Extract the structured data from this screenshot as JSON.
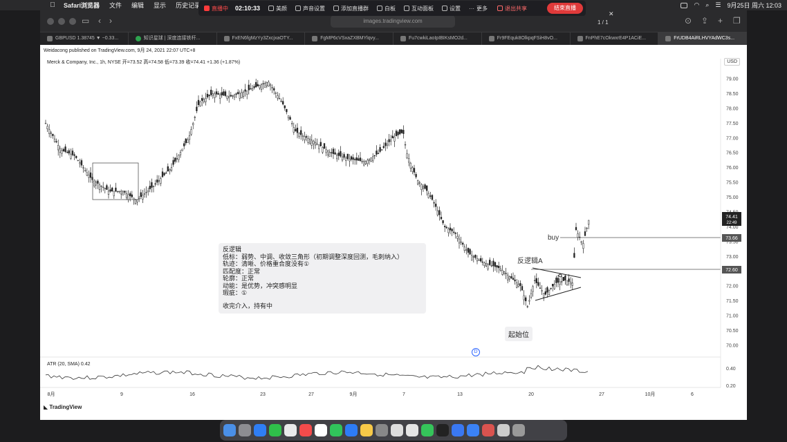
{
  "menubar": {
    "items": [
      "Safari浏览器",
      "文件",
      "编辑",
      "显示",
      "历史记录"
    ],
    "clock": "9月25日 周六 12:03"
  },
  "live": {
    "status": "直播中",
    "timer": "02:10:33",
    "tools": [
      "美颜",
      "声音设置",
      "添加直播群",
      "白板",
      "互动面板",
      "设置",
      "更多"
    ],
    "share": "退出共享",
    "end": "结束直播"
  },
  "safari": {
    "url": "images.tradingview.com",
    "pager": "1 / 1",
    "tabs": [
      "GBPUSD 1.38745 ▼ −0.33...",
      "知识星球 | 深度连接铁杆...",
      "FxEN6fgMzYy3ZxcjxaOTY...",
      "FgMP6cVSxaZXBMYlqvy...",
      "Fu7cwkiLaoIpIBIKsMO2d...",
      "Fr9FEquk8OlkpqFSiH8vO...",
      "FnPhE7cOkwxrE4P1ACiE...",
      "FrUDB4AiRLHVYAdWC3s..."
    ]
  },
  "tradingview": {
    "publisher": "Weidacong published on TradingView.com, 9月 24, 2021 22:07 UTC+8",
    "symbol": "Merck & Company, Inc., 1h, NYSE  开=73.52  高=74.58  低=73.39  收=74.41  +1.36 (+1.87%)",
    "currency": "USD",
    "price_axis": [
      "79.00",
      "78.50",
      "78.00",
      "77.50",
      "77.00",
      "76.50",
      "76.00",
      "75.50",
      "75.00",
      "74.50",
      "74.00",
      "73.50",
      "73.00",
      "72.50",
      "72.00",
      "71.50",
      "71.00",
      "70.50",
      "70.00"
    ],
    "price_tag_last": "74.41",
    "price_tag_countdown": "22:49",
    "price_tag_buy": "73.66",
    "price_tag_line": "72.60",
    "atr_axis": [
      "0.40",
      "0.20"
    ],
    "time_axis": [
      "8月",
      "9",
      "16",
      "23",
      "27",
      "9月",
      "7",
      "13",
      "20",
      "27",
      "10月",
      "6"
    ],
    "atr_label": "ATR (20, SMA)  0.42",
    "footer": "TradingView",
    "labels": {
      "buy": "buy",
      "anti": "反逻辑A",
      "start": "起始位",
      "dividend": "D"
    },
    "note": {
      "title": "反逻辑",
      "lines": [
        "低标：弱势、中调、收敛三角形（初期调整深度回测，毛刺纳入）",
        "轨迹：清晰、价格重合度没有①",
        "匹配度：正常",
        "轮廓：正常",
        "动能：是优势，冲突感明显",
        "瑕疵：①"
      ],
      "footer": "收完介入，持有中"
    }
  },
  "colors": {
    "accent_red": "#e03a3a",
    "candle": "#222222",
    "tv_blue": "#2962ff"
  }
}
